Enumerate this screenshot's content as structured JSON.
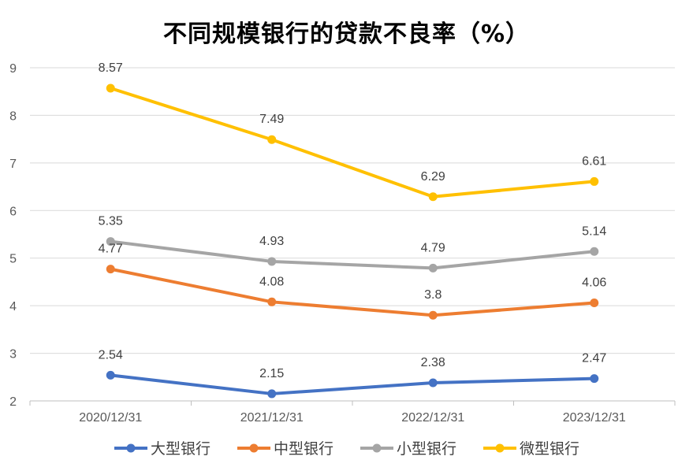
{
  "chart_data": {
    "type": "line",
    "title": "不同规模银行的贷款不良率（%）",
    "categories": [
      "2020/12/31",
      "2021/12/31",
      "2022/12/31",
      "2023/12/31"
    ],
    "ylim": [
      2,
      9
    ],
    "yticks": [
      2,
      3,
      4,
      5,
      6,
      7,
      8,
      9
    ],
    "grid": true,
    "legend_position": "bottom",
    "series": [
      {
        "name": "大型银行",
        "color": "#4472C4",
        "values": [
          2.54,
          2.15,
          2.38,
          2.47
        ],
        "labels": [
          "2.54",
          "2.15",
          "2.38",
          "2.47"
        ]
      },
      {
        "name": "中型银行",
        "color": "#ED7D31",
        "values": [
          4.77,
          4.08,
          3.8,
          4.06
        ],
        "labels": [
          "4.77",
          "4.08",
          "3.8",
          "4.06"
        ]
      },
      {
        "name": "小型银行",
        "color": "#A5A5A5",
        "values": [
          5.35,
          4.93,
          4.79,
          5.14
        ],
        "labels": [
          "5.35",
          "4.93",
          "4.79",
          "5.14"
        ]
      },
      {
        "name": "微型银行",
        "color": "#FFC000",
        "values": [
          8.57,
          7.49,
          6.29,
          6.61
        ],
        "labels": [
          "8.57",
          "7.49",
          "6.29",
          "6.61"
        ]
      }
    ]
  }
}
